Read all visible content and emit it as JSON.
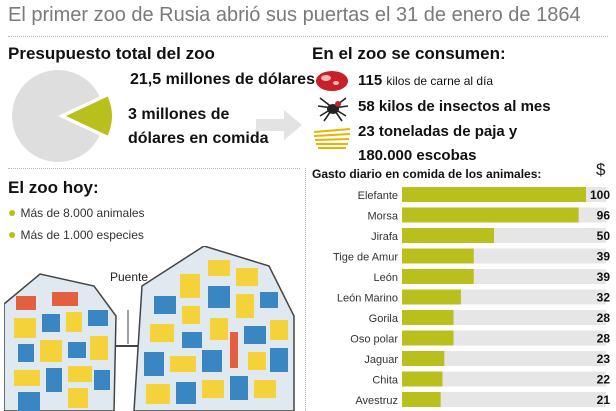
{
  "title": "El primer zoo de Rusia abrió sus puertas el 31 de enero de 1864",
  "budget": {
    "heading": "Presupuesto total del zoo",
    "total_label": "21,5 millones de dólares",
    "food_label_line1": "3 millones de",
    "food_label_line2": "dólares en comida",
    "total_value": 21.5,
    "food_value": 3,
    "colors": {
      "total": "#dedede",
      "food": "#b9bf1c",
      "arrow": "#e3e3e3"
    }
  },
  "consumption": {
    "heading": "En el zoo se consumen:",
    "meat": {
      "amount": "115",
      "unit": "kilos de carne al día",
      "icon": "meat-icon"
    },
    "insects": {
      "text": "58 kilos de insectos al mes",
      "icon": "spider-icon"
    },
    "straw": {
      "line1": "23 toneladas de paja y",
      "line2": "180.000 escobas",
      "icon": "straw-icon"
    }
  },
  "zoo_today": {
    "heading": "El zoo hoy:",
    "items": [
      "Más de 8.000 animales",
      "Más de 1.000 especies"
    ],
    "map_label": "Puente",
    "colors": {
      "yellow": "#f4d23a",
      "blue": "#3a86c2",
      "red": "#e2603f",
      "paths": "#dfe9ef",
      "lawn": "#cfe3f0"
    }
  },
  "chart_data": {
    "type": "bar",
    "title": "Gasto diario en comida de los animales:",
    "unit_label": "$",
    "categories": [
      "Elefante",
      "Morsa",
      "Jirafa",
      "Tige de Amur",
      "León",
      "León Marino",
      "Gorila",
      "Oso polar",
      "Jaguar",
      "Chita",
      "Avestruz"
    ],
    "values": [
      100,
      96,
      50,
      39,
      39,
      32,
      28,
      28,
      23,
      22,
      21
    ],
    "xlim": [
      0,
      100
    ],
    "colors": {
      "bar": "#b9bf1c",
      "track": "#e6e6e6"
    }
  }
}
